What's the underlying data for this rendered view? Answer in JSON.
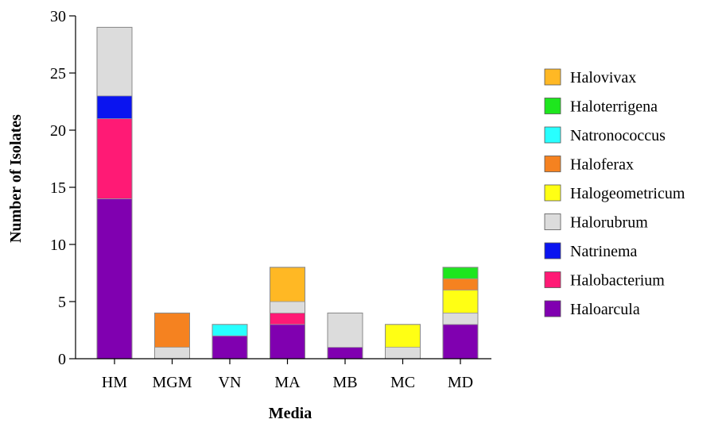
{
  "chart_data": {
    "type": "bar",
    "stacked": true,
    "xlabel": "Media",
    "ylabel": "Number of Isolates",
    "ylim": [
      0,
      30
    ],
    "yticks": [
      0,
      5,
      10,
      15,
      20,
      25,
      30
    ],
    "grid": false,
    "legend_position": "right",
    "categories": [
      "HM",
      "MGM",
      "VN",
      "MA",
      "MB",
      "MC",
      "MD"
    ],
    "series": [
      {
        "name": "Haloarcula",
        "color": "#8000b0",
        "values": [
          14,
          0,
          2,
          3,
          1,
          0,
          3
        ]
      },
      {
        "name": "Halobacterium",
        "color": "#ff1a75",
        "values": [
          7,
          0,
          0,
          1,
          0,
          0,
          0
        ]
      },
      {
        "name": "Natrinema",
        "color": "#0a14f0",
        "values": [
          2,
          0,
          0,
          0,
          0,
          0,
          0
        ]
      },
      {
        "name": "Halorubrum",
        "color": "#dcdcdc",
        "values": [
          6,
          1,
          0,
          1,
          3,
          1,
          1
        ]
      },
      {
        "name": "Halogeometricum",
        "color": "#ffff14",
        "values": [
          0,
          0,
          0,
          0,
          0,
          2,
          2
        ]
      },
      {
        "name": "Haloferax",
        "color": "#f58220",
        "values": [
          0,
          3,
          0,
          0,
          0,
          0,
          1
        ]
      },
      {
        "name": "Natronococcus",
        "color": "#28ffff",
        "values": [
          0,
          0,
          1,
          0,
          0,
          0,
          0
        ]
      },
      {
        "name": "Haloterrigena",
        "color": "#1ee61e",
        "values": [
          0,
          0,
          0,
          0,
          0,
          0,
          1
        ]
      },
      {
        "name": "Halovivax",
        "color": "#ffb824",
        "values": [
          0,
          0,
          0,
          3,
          0,
          0,
          0
        ]
      }
    ],
    "legend_order": [
      "Halovivax",
      "Haloterrigena",
      "Natronococcus",
      "Haloferax",
      "Halogeometricum",
      "Halorubrum",
      "Natrinema",
      "Halobacterium",
      "Haloarcula"
    ]
  }
}
